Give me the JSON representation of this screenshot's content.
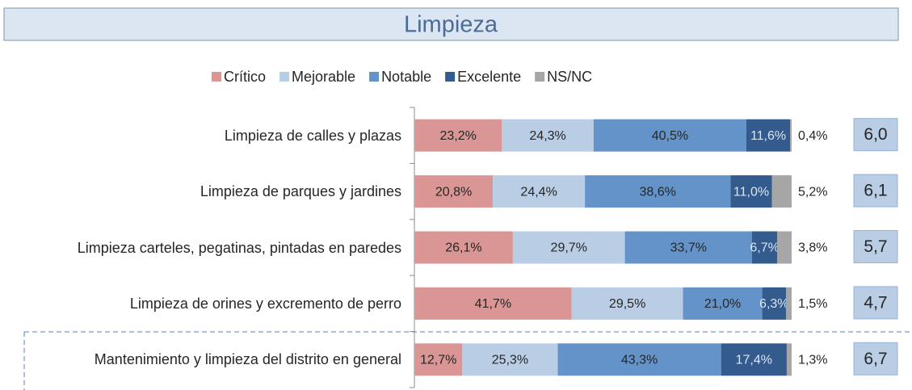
{
  "chart_data": {
    "type": "stacked-bar-horizontal",
    "title": "Limpieza",
    "categories": [
      "Limpieza de calles y plazas",
      "Limpieza de parques y jardines",
      "Limpieza carteles, pegatinas, pintadas en paredes",
      "Limpieza de orines y excremento de perro",
      "Mantenimiento y limpieza del distrito en general"
    ],
    "series": [
      {
        "name": "Crítico",
        "color": "#d99694",
        "values": [
          23.2,
          20.8,
          26.1,
          41.7,
          12.7
        ],
        "value_labels": [
          "23,2%",
          "20,8%",
          "26,1%",
          "41,7%",
          "12,7%"
        ]
      },
      {
        "name": "Mejorable",
        "color": "#b9cde5",
        "values": [
          24.3,
          24.4,
          29.7,
          29.5,
          25.3
        ],
        "value_labels": [
          "24,3%",
          "24,4%",
          "29,7%",
          "29,5%",
          "25,3%"
        ]
      },
      {
        "name": "Notable",
        "color": "#6393c8",
        "values": [
          40.5,
          38.6,
          33.7,
          21.0,
          43.3
        ],
        "value_labels": [
          "40,5%",
          "38,6%",
          "33,7%",
          "21,0%",
          "43,3%"
        ]
      },
      {
        "name": "Excelente",
        "color": "#335b8e",
        "values": [
          11.6,
          11.0,
          6.7,
          6.3,
          17.4
        ],
        "value_labels": [
          "11,6%",
          "11,0%",
          "6,7%",
          "6,3%",
          "17,4%"
        ]
      },
      {
        "name": "NS/NC",
        "color": "#a6a6a6",
        "values": [
          0.4,
          5.2,
          3.8,
          1.5,
          1.3
        ],
        "value_labels": [
          "0,4%",
          "5,2%",
          "3,8%",
          "1,5%",
          "1,3%"
        ]
      }
    ],
    "xlim": [
      0,
      100
    ],
    "scores": {
      "color": "#b9cde5",
      "values": [
        6.0,
        6.1,
        5.7,
        4.7,
        6.7
      ],
      "value_labels": [
        "6,0",
        "6,1",
        "5,7",
        "4,7",
        "6,7"
      ]
    }
  }
}
